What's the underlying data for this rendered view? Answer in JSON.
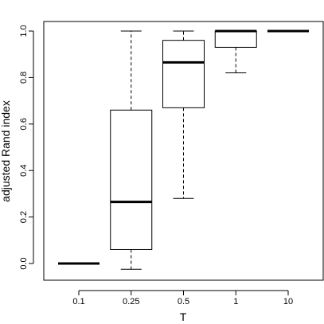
{
  "chart_data": {
    "type": "box",
    "title": "",
    "xlabel": "T",
    "ylabel": "adjusted Rand index",
    "ylim": [
      -0.06,
      1.04
    ],
    "yticks": [
      0.0,
      0.2,
      0.4,
      0.6,
      0.8,
      1.0
    ],
    "ytick_labels": [
      "0.0",
      "0.2",
      "0.4",
      "0.6",
      "0.8",
      "1.0"
    ],
    "categories": [
      "0.1",
      "0.25",
      "0.5",
      "1",
      "10"
    ],
    "boxes": [
      {
        "category": "0.1",
        "whisker_low": 0.0,
        "q1": 0.0,
        "median": 0.0,
        "q3": 0.0,
        "whisker_high": 0.0
      },
      {
        "category": "0.25",
        "whisker_low": -0.025,
        "q1": 0.06,
        "median": 0.265,
        "q3": 0.66,
        "whisker_high": 1.0
      },
      {
        "category": "0.5",
        "whisker_low": 0.28,
        "q1": 0.67,
        "median": 0.865,
        "q3": 0.96,
        "whisker_high": 1.0
      },
      {
        "category": "1",
        "whisker_low": 0.82,
        "q1": 0.93,
        "median": 1.0,
        "q3": 1.0,
        "whisker_high": 1.0
      },
      {
        "category": "10",
        "whisker_low": 1.0,
        "q1": 1.0,
        "median": 1.0,
        "q3": 1.0,
        "whisker_high": 1.0
      }
    ]
  }
}
